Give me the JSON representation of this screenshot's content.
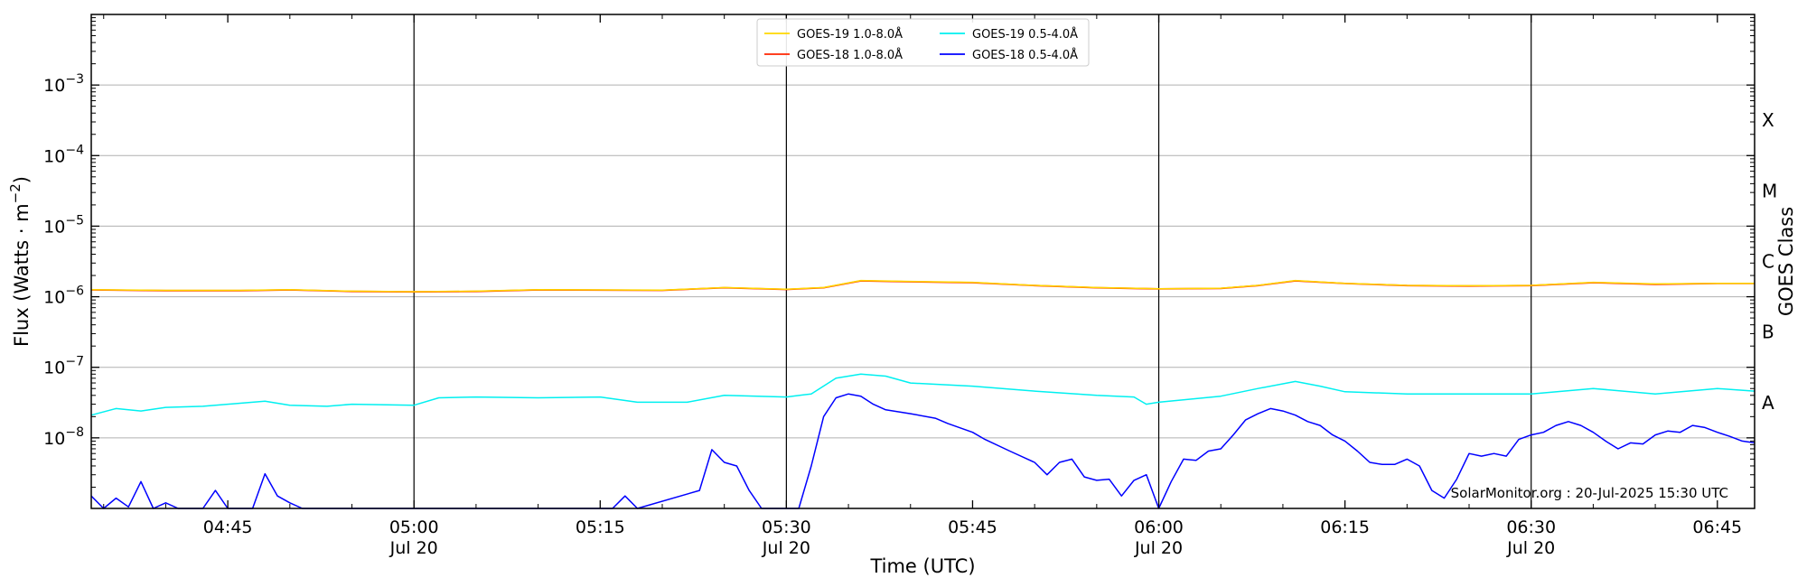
{
  "chart_data": {
    "type": "line",
    "title": "",
    "xlabel": "Time (UTC)",
    "ylabel": "Flux (Watts · m",
    "ylabel_superscript": "−2",
    "ylabel_close": ")",
    "right_axis_label": "GOES Class",
    "y_scale": "log",
    "ylim": [
      1e-09,
      0.01
    ],
    "xlim": [
      "04:34",
      "06:48"
    ],
    "grid": "horizontal",
    "legend_position": "top-center",
    "credit": "SolarMonitor.org : 20-Jul-2025 15:30 UTC",
    "y_ticks": [
      {
        "value": 1e-08,
        "base": "10",
        "exp": "−8"
      },
      {
        "value": 1e-07,
        "base": "10",
        "exp": "−7"
      },
      {
        "value": 1e-06,
        "base": "10",
        "exp": "−6"
      },
      {
        "value": 1e-05,
        "base": "10",
        "exp": "−5"
      },
      {
        "value": 0.0001,
        "base": "10",
        "exp": "−4"
      },
      {
        "value": 0.001,
        "base": "10",
        "exp": "−3"
      }
    ],
    "x_ticks": [
      {
        "time": "04:45",
        "label": "04:45",
        "date": ""
      },
      {
        "time": "05:00",
        "label": "05:00",
        "date": "Jul 20"
      },
      {
        "time": "05:15",
        "label": "05:15",
        "date": ""
      },
      {
        "time": "05:30",
        "label": "05:30",
        "date": "Jul 20"
      },
      {
        "time": "05:45",
        "label": "05:45",
        "date": ""
      },
      {
        "time": "06:00",
        "label": "06:00",
        "date": "Jul 20"
      },
      {
        "time": "06:15",
        "label": "06:15",
        "date": ""
      },
      {
        "time": "06:30",
        "label": "06:30",
        "date": "Jul 20"
      },
      {
        "time": "06:45",
        "label": "06:45",
        "date": ""
      }
    ],
    "vertical_lines": [
      "05:00",
      "05:30",
      "06:00",
      "06:30"
    ],
    "goes_classes": [
      {
        "label": "A",
        "value": 3.16e-08
      },
      {
        "label": "B",
        "value": 3.16e-07
      },
      {
        "label": "C",
        "value": 3.16e-06
      },
      {
        "label": "M",
        "value": 3.16e-05
      },
      {
        "label": "X",
        "value": 0.000316
      }
    ],
    "series": [
      {
        "name": "GOES-19 1.0-8.0Å",
        "color": "#FFD700",
        "points": [
          [
            "04:34",
            1.26e-06
          ],
          [
            "04:40",
            1.23e-06
          ],
          [
            "04:46",
            1.23e-06
          ],
          [
            "04:50",
            1.26e-06
          ],
          [
            "04:55",
            1.2e-06
          ],
          [
            "05:00",
            1.18e-06
          ],
          [
            "05:05",
            1.2e-06
          ],
          [
            "05:10",
            1.26e-06
          ],
          [
            "05:20",
            1.24e-06
          ],
          [
            "05:25",
            1.35e-06
          ],
          [
            "05:30",
            1.28e-06
          ],
          [
            "05:33",
            1.35e-06
          ],
          [
            "05:36",
            1.7e-06
          ],
          [
            "05:40",
            1.65e-06
          ],
          [
            "05:45",
            1.6e-06
          ],
          [
            "05:50",
            1.45e-06
          ],
          [
            "05:55",
            1.35e-06
          ],
          [
            "06:00",
            1.3e-06
          ],
          [
            "06:05",
            1.32e-06
          ],
          [
            "06:08",
            1.45e-06
          ],
          [
            "06:11",
            1.7e-06
          ],
          [
            "06:15",
            1.55e-06
          ],
          [
            "06:20",
            1.45e-06
          ],
          [
            "06:25",
            1.43e-06
          ],
          [
            "06:30",
            1.45e-06
          ],
          [
            "06:35",
            1.6e-06
          ],
          [
            "06:40",
            1.52e-06
          ],
          [
            "06:45",
            1.55e-06
          ],
          [
            "06:48",
            1.55e-06
          ]
        ]
      },
      {
        "name": "GOES-18 1.0-8.0Å",
        "color": "#FF2400",
        "points": [
          [
            "04:34",
            1.25e-06
          ],
          [
            "04:40",
            1.22e-06
          ],
          [
            "04:46",
            1.22e-06
          ],
          [
            "04:50",
            1.25e-06
          ],
          [
            "04:55",
            1.19e-06
          ],
          [
            "05:00",
            1.17e-06
          ],
          [
            "05:05",
            1.19e-06
          ],
          [
            "05:10",
            1.25e-06
          ],
          [
            "05:20",
            1.23e-06
          ],
          [
            "05:25",
            1.34e-06
          ],
          [
            "05:30",
            1.27e-06
          ],
          [
            "05:33",
            1.34e-06
          ],
          [
            "05:36",
            1.68e-06
          ],
          [
            "05:40",
            1.63e-06
          ],
          [
            "05:45",
            1.58e-06
          ],
          [
            "05:50",
            1.44e-06
          ],
          [
            "05:55",
            1.34e-06
          ],
          [
            "06:00",
            1.29e-06
          ],
          [
            "06:05",
            1.31e-06
          ],
          [
            "06:08",
            1.44e-06
          ],
          [
            "06:11",
            1.68e-06
          ],
          [
            "06:15",
            1.54e-06
          ],
          [
            "06:20",
            1.44e-06
          ],
          [
            "06:25",
            1.42e-06
          ],
          [
            "06:30",
            1.44e-06
          ],
          [
            "06:35",
            1.58e-06
          ],
          [
            "06:40",
            1.5e-06
          ],
          [
            "06:45",
            1.54e-06
          ],
          [
            "06:48",
            1.54e-06
          ]
        ]
      },
      {
        "name": "GOES-19 0.5-4.0Å",
        "color": "#00F0F0",
        "points": [
          [
            "04:34",
            2.1e-08
          ],
          [
            "04:36",
            2.6e-08
          ],
          [
            "04:38",
            2.4e-08
          ],
          [
            "04:40",
            2.7e-08
          ],
          [
            "04:43",
            2.8e-08
          ],
          [
            "04:46",
            3.1e-08
          ],
          [
            "04:48",
            3.3e-08
          ],
          [
            "04:50",
            2.9e-08
          ],
          [
            "04:53",
            2.8e-08
          ],
          [
            "04:55",
            3e-08
          ],
          [
            "05:00",
            2.9e-08
          ],
          [
            "05:02",
            3.7e-08
          ],
          [
            "05:05",
            3.8e-08
          ],
          [
            "05:10",
            3.7e-08
          ],
          [
            "05:15",
            3.8e-08
          ],
          [
            "05:18",
            3.2e-08
          ],
          [
            "05:22",
            3.2e-08
          ],
          [
            "05:25",
            4e-08
          ],
          [
            "05:30",
            3.8e-08
          ],
          [
            "05:32",
            4.2e-08
          ],
          [
            "05:34",
            7e-08
          ],
          [
            "05:36",
            8e-08
          ],
          [
            "05:38",
            7.5e-08
          ],
          [
            "05:40",
            6e-08
          ],
          [
            "05:45",
            5.4e-08
          ],
          [
            "05:50",
            4.6e-08
          ],
          [
            "05:55",
            4e-08
          ],
          [
            "05:58",
            3.8e-08
          ],
          [
            "05:59",
            3e-08
          ],
          [
            "06:00",
            3.2e-08
          ],
          [
            "06:05",
            3.9e-08
          ],
          [
            "06:08",
            5e-08
          ],
          [
            "06:11",
            6.3e-08
          ],
          [
            "06:13",
            5.4e-08
          ],
          [
            "06:15",
            4.5e-08
          ],
          [
            "06:20",
            4.2e-08
          ],
          [
            "06:25",
            4.2e-08
          ],
          [
            "06:30",
            4.2e-08
          ],
          [
            "06:35",
            5e-08
          ],
          [
            "06:40",
            4.2e-08
          ],
          [
            "06:45",
            5e-08
          ],
          [
            "06:48",
            4.6e-08
          ]
        ]
      },
      {
        "name": "GOES-18 0.5-4.0Å",
        "color": "#0000FF",
        "points": [
          [
            "04:34",
            1.5e-09
          ],
          [
            "04:35",
            1e-09
          ],
          [
            "04:36",
            1.4e-09
          ],
          [
            "04:37",
            1.05e-09
          ],
          [
            "04:38",
            2.4e-09
          ],
          [
            "04:39",
            1e-09
          ],
          [
            "04:40",
            1.2e-09
          ],
          [
            "04:41",
            1e-09
          ],
          [
            "04:43",
            1e-09
          ],
          [
            "04:44",
            1.8e-09
          ],
          [
            "04:45",
            1e-09
          ],
          [
            "04:47",
            1e-09
          ],
          [
            "04:48",
            3.1e-09
          ],
          [
            "04:49",
            1.5e-09
          ],
          [
            "04:50",
            1.2e-09
          ],
          [
            "04:51",
            1e-09
          ],
          [
            "05:09",
            1e-09
          ],
          [
            "05:16",
            1e-09
          ],
          [
            "05:17",
            1.5e-09
          ],
          [
            "05:18",
            1e-09
          ],
          [
            "05:23",
            1.8e-09
          ],
          [
            "05:24",
            6.8e-09
          ],
          [
            "05:25",
            4.5e-09
          ],
          [
            "05:26",
            4e-09
          ],
          [
            "05:27",
            1.8e-09
          ],
          [
            "05:28",
            1e-09
          ],
          [
            "05:31",
            1e-09
          ],
          [
            "05:32",
            4e-09
          ],
          [
            "05:33",
            2e-08
          ],
          [
            "05:34",
            3.7e-08
          ],
          [
            "05:35",
            4.2e-08
          ],
          [
            "05:36",
            3.9e-08
          ],
          [
            "05:37",
            3e-08
          ],
          [
            "05:38",
            2.5e-08
          ],
          [
            "05:40",
            2.2e-08
          ],
          [
            "05:42",
            1.9e-08
          ],
          [
            "05:43",
            1.6e-08
          ],
          [
            "05:45",
            1.2e-08
          ],
          [
            "05:46",
            9.5e-09
          ],
          [
            "05:48",
            6.5e-09
          ],
          [
            "05:50",
            4.5e-09
          ],
          [
            "05:51",
            3e-09
          ],
          [
            "05:52",
            4.5e-09
          ],
          [
            "05:53",
            5e-09
          ],
          [
            "05:54",
            2.8e-09
          ],
          [
            "05:55",
            2.5e-09
          ],
          [
            "05:56",
            2.6e-09
          ],
          [
            "05:57",
            1.5e-09
          ],
          [
            "05:58",
            2.5e-09
          ],
          [
            "05:59",
            3e-09
          ],
          [
            "06:00",
            1e-09
          ],
          [
            "06:01",
            2.4e-09
          ],
          [
            "06:02",
            5e-09
          ],
          [
            "06:03",
            4.8e-09
          ],
          [
            "06:04",
            6.5e-09
          ],
          [
            "06:05",
            7e-09
          ],
          [
            "06:06",
            1.1e-08
          ],
          [
            "06:07",
            1.8e-08
          ],
          [
            "06:08",
            2.2e-08
          ],
          [
            "06:09",
            2.6e-08
          ],
          [
            "06:10",
            2.4e-08
          ],
          [
            "06:11",
            2.1e-08
          ],
          [
            "06:12",
            1.7e-08
          ],
          [
            "06:13",
            1.5e-08
          ],
          [
            "06:14",
            1.1e-08
          ],
          [
            "06:15",
            9e-09
          ],
          [
            "06:16",
            6.5e-09
          ],
          [
            "06:17",
            4.5e-09
          ],
          [
            "06:18",
            4.2e-09
          ],
          [
            "06:19",
            4.2e-09
          ],
          [
            "06:20",
            5e-09
          ],
          [
            "06:21",
            4e-09
          ],
          [
            "06:22",
            1.8e-09
          ],
          [
            "06:23",
            1.4e-09
          ],
          [
            "06:24",
            2.6e-09
          ],
          [
            "06:25",
            6e-09
          ],
          [
            "06:26",
            5.5e-09
          ],
          [
            "06:27",
            6e-09
          ],
          [
            "06:28",
            5.5e-09
          ],
          [
            "06:29",
            9.5e-09
          ],
          [
            "06:30",
            1.1e-08
          ],
          [
            "06:31",
            1.2e-08
          ],
          [
            "06:32",
            1.5e-08
          ],
          [
            "06:33",
            1.7e-08
          ],
          [
            "06:34",
            1.5e-08
          ],
          [
            "06:35",
            1.2e-08
          ],
          [
            "06:36",
            9e-09
          ],
          [
            "06:37",
            7e-09
          ],
          [
            "06:38",
            8.5e-09
          ],
          [
            "06:39",
            8.2e-09
          ],
          [
            "06:40",
            1.1e-08
          ],
          [
            "06:41",
            1.25e-08
          ],
          [
            "06:42",
            1.2e-08
          ],
          [
            "06:43",
            1.5e-08
          ],
          [
            "06:44",
            1.4e-08
          ],
          [
            "06:45",
            1.2e-08
          ],
          [
            "06:46",
            1.05e-08
          ],
          [
            "06:47",
            9e-09
          ],
          [
            "06:48",
            8.5e-09
          ]
        ]
      }
    ]
  }
}
